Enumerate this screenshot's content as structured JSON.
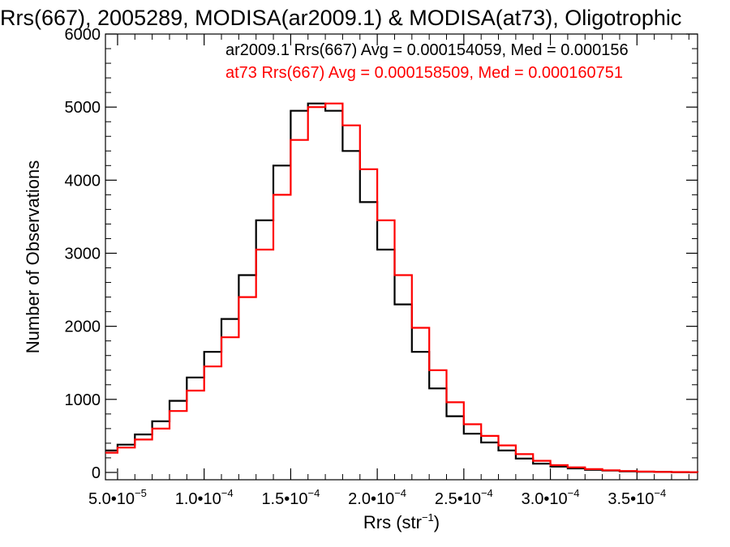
{
  "chart_data": {
    "type": "histogram-step",
    "title": "Rrs(667), 2005289, MODISA(ar2009.1) & MODISA(at73), Oligotrophic",
    "xlabel": {
      "base": "Rrs (str",
      "sup": "−1",
      "close": ")"
    },
    "ylabel": "Number of Observations",
    "xlim": [
      4.3e-05,
      0.000385
    ],
    "ylim": [
      -100,
      6000
    ],
    "x_ticks": [
      {
        "value": 5e-05,
        "mantissa": "5.0•10",
        "exp": "−5"
      },
      {
        "value": 0.0001,
        "mantissa": "1.0•10",
        "exp": "−4"
      },
      {
        "value": 0.00015,
        "mantissa": "1.5•10",
        "exp": "−4"
      },
      {
        "value": 0.0002,
        "mantissa": "2.0•10",
        "exp": "−4"
      },
      {
        "value": 0.00025,
        "mantissa": "2.5•10",
        "exp": "−4"
      },
      {
        "value": 0.0003,
        "mantissa": "3.0•10",
        "exp": "−4"
      },
      {
        "value": 0.00035,
        "mantissa": "3.5•10",
        "exp": "−4"
      }
    ],
    "y_ticks": [
      0,
      1000,
      2000,
      3000,
      4000,
      5000,
      6000
    ],
    "grid": false,
    "legend_position": "top-right",
    "series": [
      {
        "legend": "ar2009.1 Rrs(667) Avg = 0.000154059, Med = 0.000156",
        "color": "#000000",
        "x": [
          4.3e-05,
          5e-05,
          6e-05,
          7e-05,
          8e-05,
          9e-05,
          0.0001,
          0.00011,
          0.00012,
          0.00013,
          0.00014,
          0.00015,
          0.00016,
          0.00017,
          0.00018,
          0.00019,
          0.0002,
          0.00021,
          0.00022,
          0.00023,
          0.00024,
          0.00025,
          0.00026,
          0.00027,
          0.00028,
          0.00029,
          0.0003,
          0.00031,
          0.00032,
          0.00033,
          0.00034,
          0.00035,
          0.00036,
          0.00037,
          0.00038,
          0.000385
        ],
        "y": [
          300,
          380,
          520,
          700,
          980,
          1300,
          1650,
          2100,
          2700,
          3450,
          4200,
          4950,
          5050,
          4950,
          4400,
          3700,
          3050,
          2300,
          1650,
          1150,
          770,
          530,
          410,
          300,
          190,
          120,
          80,
          55,
          35,
          25,
          15,
          10,
          6,
          4,
          2,
          1
        ]
      },
      {
        "legend": "at73 Rrs(667) Avg = 0.000158509, Med = 0.000160751",
        "color": "#ff0000",
        "x": [
          4.3e-05,
          5e-05,
          6e-05,
          7e-05,
          8e-05,
          9e-05,
          0.0001,
          0.00011,
          0.00012,
          0.00013,
          0.00014,
          0.00015,
          0.00016,
          0.00017,
          0.00018,
          0.00019,
          0.0002,
          0.00021,
          0.00022,
          0.00023,
          0.00024,
          0.00025,
          0.00026,
          0.00027,
          0.00028,
          0.00029,
          0.0003,
          0.00031,
          0.00032,
          0.00033,
          0.00034,
          0.00035,
          0.00036,
          0.00037,
          0.00038,
          0.000385
        ],
        "y": [
          270,
          340,
          450,
          600,
          840,
          1120,
          1450,
          1850,
          2400,
          3050,
          3800,
          4550,
          5000,
          5050,
          4750,
          4150,
          3450,
          2700,
          1980,
          1400,
          960,
          660,
          500,
          370,
          250,
          160,
          100,
          70,
          45,
          30,
          20,
          12,
          8,
          5,
          3,
          1
        ]
      }
    ]
  }
}
